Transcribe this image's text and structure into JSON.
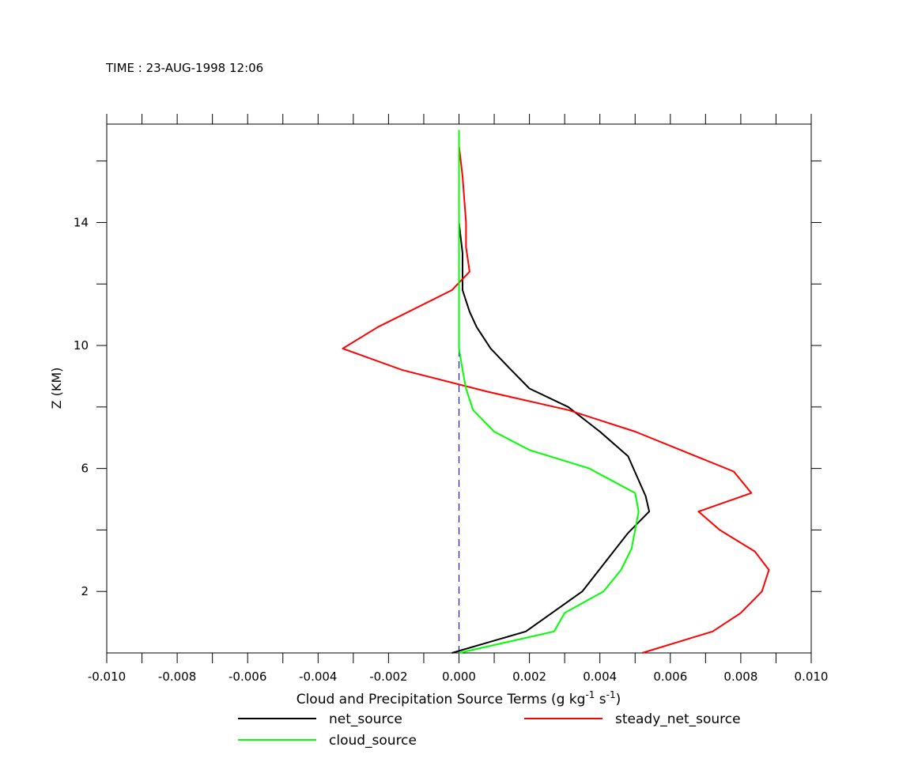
{
  "header": {
    "time_label": "TIME : 23-AUG-1998 12:06"
  },
  "chart_data": {
    "type": "line",
    "xlabel": "Cloud and Precipitation Source Terms (g kg",
    "xlabel_sup1": "-1",
    "xlabel_mid": " s",
    "xlabel_sup2": "-1",
    "xlabel_end": ")",
    "ylabel": "Z (KM)",
    "xlim": [
      -0.01,
      0.01
    ],
    "ylim": [
      0,
      17.2
    ],
    "x_ticks": [
      -0.01,
      -0.009,
      -0.008,
      -0.007,
      -0.006,
      -0.005,
      -0.004,
      -0.003,
      -0.002,
      -0.001,
      0.0,
      0.001,
      0.002,
      0.003,
      0.004,
      0.005,
      0.006,
      0.007,
      0.008,
      0.009,
      0.01
    ],
    "x_tick_labels": [
      "-0.010",
      "",
      "-0.008",
      "",
      "-0.006",
      "",
      "-0.004",
      "",
      "-0.002",
      "",
      "0.000",
      "",
      "0.002",
      "",
      "0.004",
      "",
      "0.006",
      "",
      "0.008",
      "",
      "0.010"
    ],
    "y_ticks": [
      2,
      4,
      6,
      8,
      10,
      12,
      14,
      16
    ],
    "y_tick_labels": [
      "2",
      "",
      "6",
      "",
      "10",
      "",
      "14",
      ""
    ],
    "grid": false,
    "legend_position": "bottom",
    "colors": {
      "net_source": "#000000",
      "steady_net_source": "#ff0000",
      "cloud_source": "#00ff00",
      "zero_line": "#0000ff"
    },
    "series": [
      {
        "name": "net_source",
        "color": "#000000",
        "points": [
          [
            -0.0002,
            0.0
          ],
          [
            0.0019,
            0.7
          ],
          [
            0.0035,
            2.0
          ],
          [
            0.0048,
            3.9
          ],
          [
            0.0054,
            4.6
          ],
          [
            0.0053,
            5.1
          ],
          [
            0.0048,
            6.4
          ],
          [
            0.004,
            7.2
          ],
          [
            0.0031,
            8.0
          ],
          [
            0.002,
            8.6
          ],
          [
            0.0014,
            9.3
          ],
          [
            0.0009,
            9.9
          ],
          [
            0.0005,
            10.6
          ],
          [
            0.0003,
            11.1
          ],
          [
            0.0001,
            11.8
          ],
          [
            0.0001,
            12.4
          ],
          [
            0.0001,
            13.0
          ],
          [
            0.0,
            14.0
          ],
          [
            0.0,
            17.0
          ]
        ]
      },
      {
        "name": "steady_net_source",
        "color": "#ff0000",
        "points": [
          [
            0.0052,
            0.0
          ],
          [
            0.0072,
            0.7
          ],
          [
            0.008,
            1.3
          ],
          [
            0.0086,
            2.0
          ],
          [
            0.0088,
            2.7
          ],
          [
            0.0084,
            3.3
          ],
          [
            0.0074,
            4.0
          ],
          [
            0.0068,
            4.6
          ],
          [
            0.0083,
            5.2
          ],
          [
            0.0078,
            5.9
          ],
          [
            0.005,
            7.2
          ],
          [
            0.0031,
            7.9
          ],
          [
            0.0008,
            8.5
          ],
          [
            -0.0016,
            9.2
          ],
          [
            -0.0033,
            9.9
          ],
          [
            -0.0023,
            10.6
          ],
          [
            -0.0002,
            11.8
          ],
          [
            0.0003,
            12.4
          ],
          [
            0.0002,
            13.2
          ],
          [
            0.0002,
            14.0
          ],
          [
            0.0001,
            15.5
          ],
          [
            0.0,
            16.5
          ],
          [
            0.0,
            17.0
          ]
        ]
      },
      {
        "name": "cloud_source",
        "color": "#00ff00",
        "points": [
          [
            0.0,
            0.0
          ],
          [
            0.0027,
            0.7
          ],
          [
            0.003,
            1.3
          ],
          [
            0.0041,
            2.0
          ],
          [
            0.0046,
            2.7
          ],
          [
            0.0049,
            3.4
          ],
          [
            0.0051,
            4.6
          ],
          [
            0.005,
            5.2
          ],
          [
            0.0037,
            6.0
          ],
          [
            0.002,
            6.6
          ],
          [
            0.001,
            7.2
          ],
          [
            0.0004,
            7.9
          ],
          [
            0.0002,
            8.6
          ],
          [
            0.0001,
            9.2
          ],
          [
            0.0,
            9.9
          ],
          [
            0.0,
            11.0
          ],
          [
            0.0,
            13.0
          ],
          [
            0.0,
            15.0
          ],
          [
            0.0,
            17.0
          ]
        ]
      }
    ],
    "reference_line": {
      "x": 0.0,
      "style": "dashed",
      "color": "#0000ff"
    },
    "legend": [
      {
        "name": "net_source",
        "color": "#000000"
      },
      {
        "name": "steady_net_source",
        "color": "#ff0000"
      },
      {
        "name": "cloud_source",
        "color": "#00ff00"
      }
    ]
  }
}
